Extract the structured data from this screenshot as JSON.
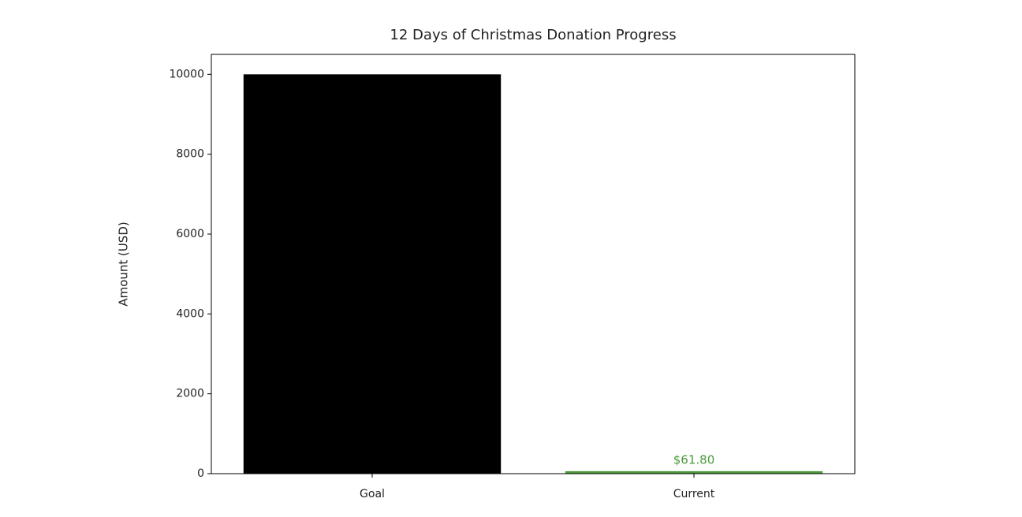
{
  "chart_data": {
    "type": "bar",
    "title": "12 Days of Christmas Donation Progress",
    "ylabel": "Amount (USD)",
    "categories": [
      "Goal",
      "Current"
    ],
    "values": [
      10000,
      61.8
    ],
    "value_labels": [
      null,
      "$61.80"
    ],
    "colors": [
      "#000000",
      "#4a9a3a"
    ],
    "ylim": [
      0,
      10500
    ],
    "yticks": [
      0,
      2000,
      4000,
      6000,
      8000,
      10000
    ]
  }
}
